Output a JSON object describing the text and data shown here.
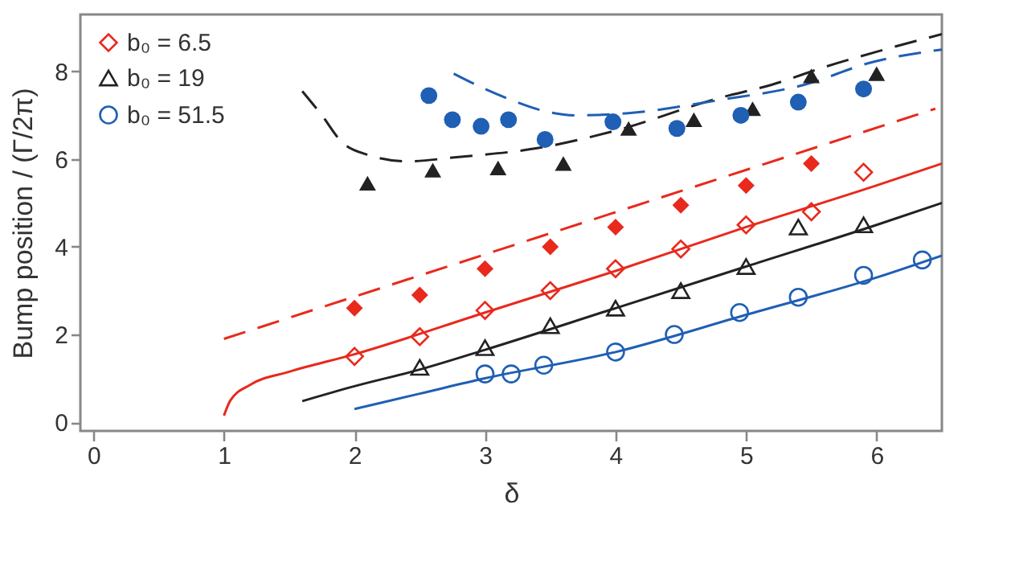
{
  "chart_data": {
    "type": "scatter",
    "xlabel": "δ",
    "ylabel": "Bump position / (Γ/2π)",
    "xlim": [
      -0.1,
      6.5
    ],
    "ylim": [
      -0.2,
      9.3
    ],
    "xticks": [
      0,
      1,
      2,
      3,
      4,
      5,
      6
    ],
    "yticks": [
      0,
      2,
      4,
      6,
      8
    ],
    "grid": false,
    "legend": "top left",
    "series": [
      {
        "name": "b₀ = 6.5",
        "marker": "diamond",
        "color": "#e8291c",
        "x": [
          2.0,
          2.5,
          3.0,
          3.5,
          4.0,
          4.5,
          5.0,
          5.5,
          5.9
        ],
        "values": [
          1.5,
          1.95,
          2.55,
          3.0,
          3.5,
          3.95,
          4.5,
          4.8,
          5.7
        ]
      },
      {
        "name": "b₀ = 19",
        "marker": "triangle",
        "color": "#222222",
        "x": [
          2.5,
          3.0,
          3.5,
          4.0,
          4.5,
          5.0,
          5.4,
          5.9
        ],
        "values": [
          1.25,
          1.7,
          2.2,
          2.6,
          3.0,
          3.55,
          4.45,
          4.5
        ]
      },
      {
        "name": "b₀ = 51.5",
        "marker": "circle",
        "color": "#1f5fb4",
        "x": [
          3.0,
          3.2,
          3.45,
          4.0,
          4.45,
          4.95,
          5.4,
          5.9,
          6.35
        ],
        "values": [
          1.1,
          1.1,
          1.3,
          1.6,
          2.0,
          2.5,
          2.85,
          3.35,
          3.7
        ]
      },
      {
        "marker": "diamond",
        "color": "#e8291c",
        "x": [
          2.0,
          2.5,
          3.0,
          3.5,
          4.0,
          4.5,
          5.0,
          5.5
        ],
        "values": [
          2.6,
          2.9,
          3.5,
          4.0,
          4.45,
          4.95,
          5.4,
          5.9
        ]
      },
      {
        "marker": "triangle",
        "color": "#222222",
        "x": [
          2.1,
          2.6,
          3.1,
          3.6,
          4.1,
          4.6,
          5.05,
          5.5,
          6.0
        ],
        "values": [
          5.45,
          5.75,
          5.8,
          5.9,
          6.7,
          6.9,
          7.15,
          7.9,
          7.95
        ]
      },
      {
        "marker": "circle",
        "color": "#1f5fb4",
        "x": [
          2.57,
          2.75,
          2.97,
          3.18,
          3.46,
          3.98,
          4.47,
          4.96,
          5.4,
          5.9
        ],
        "values": [
          7.45,
          6.9,
          6.75,
          6.9,
          6.45,
          6.85,
          6.7,
          7.0,
          7.3,
          7.6
        ]
      },
      {
        "type": "line",
        "line_style": "solid",
        "color": "#e8291c",
        "x": [
          1.0,
          1.05,
          1.2,
          1.5,
          2.0,
          3.0,
          4.0,
          5.0,
          6.0,
          6.5
        ],
        "values": [
          0.15,
          0.5,
          0.85,
          1.15,
          1.55,
          2.5,
          3.45,
          4.45,
          5.4,
          5.9
        ]
      },
      {
        "type": "line",
        "line_style": "solid",
        "color": "#222222",
        "x": [
          1.6,
          2.0,
          2.5,
          3.0,
          4.0,
          5.0,
          6.0,
          6.5
        ],
        "values": [
          0.48,
          0.82,
          1.2,
          1.65,
          2.6,
          3.55,
          4.5,
          5.0
        ]
      },
      {
        "type": "line",
        "line_style": "solid",
        "color": "#1f5fb4",
        "x": [
          2.0,
          2.5,
          3.0,
          4.0,
          5.0,
          6.0,
          6.5
        ],
        "values": [
          0.3,
          0.65,
          1.0,
          1.6,
          2.45,
          3.3,
          3.8
        ]
      },
      {
        "type": "line",
        "line_style": "dashed",
        "color": "#e8291c",
        "x": [
          1.0,
          6.45
        ],
        "values": [
          1.9,
          7.15
        ]
      },
      {
        "type": "line",
        "line_style": "dashed",
        "color": "#222222",
        "x": [
          1.6,
          1.75,
          1.9,
          2.1,
          2.4,
          2.8,
          3.4,
          4.0,
          4.8,
          5.2,
          5.6,
          6.0,
          6.5
        ],
        "values": [
          7.55,
          7.0,
          6.4,
          6.1,
          5.95,
          6.05,
          6.25,
          6.65,
          7.4,
          7.7,
          8.1,
          8.45,
          8.85
        ]
      },
      {
        "type": "line",
        "line_style": "dashed",
        "color": "#1f5fb4",
        "x": [
          2.76,
          3.0,
          3.2,
          3.45,
          3.7,
          4.1,
          4.8,
          5.45,
          5.95,
          6.5
        ],
        "values": [
          7.95,
          7.6,
          7.35,
          7.1,
          7.0,
          7.05,
          7.35,
          7.7,
          8.2,
          8.5
        ]
      }
    ]
  }
}
